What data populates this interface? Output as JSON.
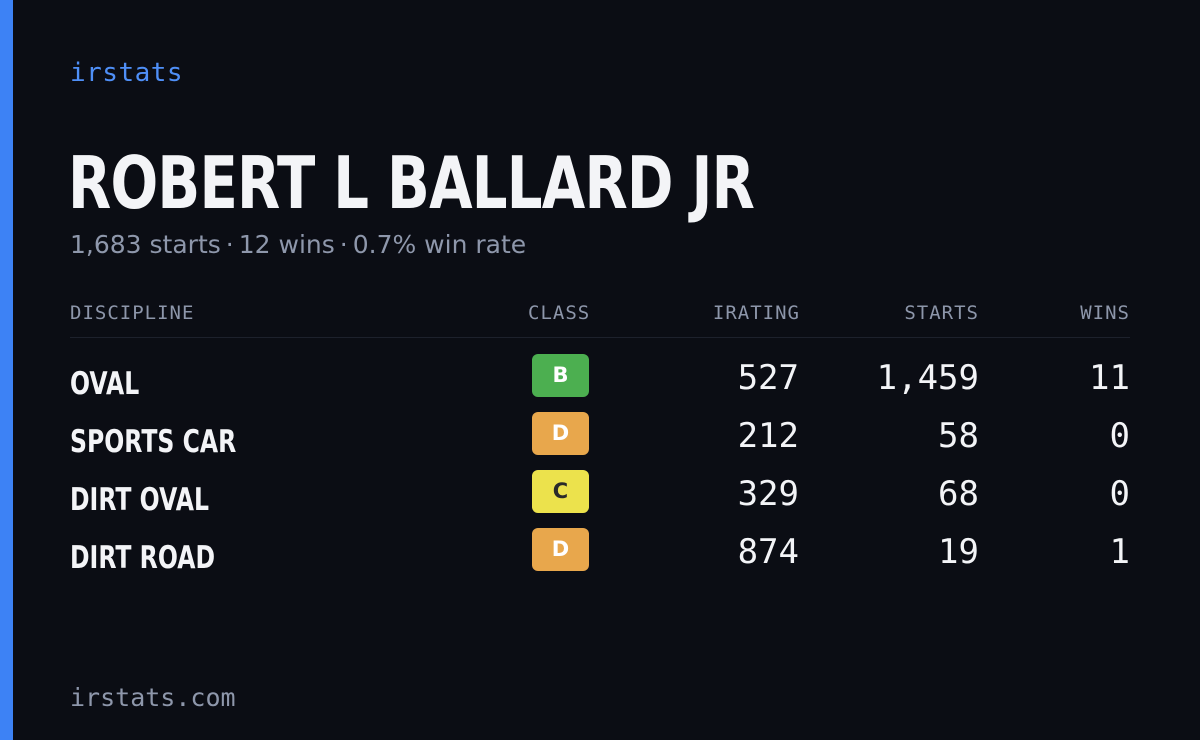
{
  "brand": "irstats",
  "driver": {
    "name": "ROBERT L BALLARD JR",
    "starts": "1,683 starts",
    "wins": "12 wins",
    "win_rate": "0.7% win rate",
    "separator": "·"
  },
  "table": {
    "headers": {
      "discipline": "DISCIPLINE",
      "class": "CLASS",
      "irating": "IRATING",
      "starts": "STARTS",
      "wins": "WINS"
    },
    "rows": [
      {
        "discipline": "OVAL",
        "class": "B",
        "class_color": "#4caf50",
        "class_text_color": "#ffffff",
        "irating": "527",
        "starts": "1,459",
        "wins": "11"
      },
      {
        "discipline": "SPORTS CAR",
        "class": "D",
        "class_color": "#e8a74c",
        "class_text_color": "#ffffff",
        "irating": "212",
        "starts": "58",
        "wins": "0"
      },
      {
        "discipline": "DIRT OVAL",
        "class": "C",
        "class_color": "#ece24c",
        "class_text_color": "#2a2a2a",
        "irating": "329",
        "starts": "68",
        "wins": "0"
      },
      {
        "discipline": "DIRT ROAD",
        "class": "D",
        "class_color": "#e8a74c",
        "class_text_color": "#ffffff",
        "irating": "874",
        "starts": "19",
        "wins": "1"
      }
    ]
  },
  "footer": "irstats.com",
  "colors": {
    "background": "#0b0d14",
    "accent": "#3d82f5",
    "brand": "#4f8ff7",
    "text": "#f3f4f7",
    "muted": "#8e97ab"
  }
}
